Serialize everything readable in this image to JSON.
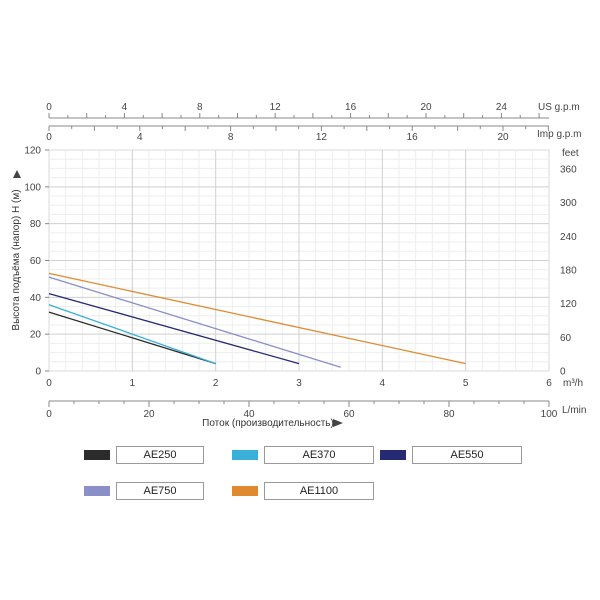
{
  "chart_data": {
    "type": "line",
    "ylabel": "Высота подъёма (напор) H (м)",
    "xlabel": "Поток (производительность)",
    "y_left": {
      "ticks": [
        "0",
        "20",
        "40",
        "60",
        "80",
        "100",
        "120"
      ],
      "ylim": [
        0,
        120
      ]
    },
    "y_right": {
      "unit": "feet",
      "ticks": [
        "0",
        "60",
        "120",
        "180",
        "240",
        "300",
        "360"
      ]
    },
    "x_m3h": {
      "unit": "m³/h",
      "ticks": [
        "0",
        "1",
        "2",
        "3",
        "4",
        "5",
        "6"
      ],
      "xlim": [
        0,
        6
      ]
    },
    "x_lmin": {
      "unit": "L/min",
      "ticks": [
        "0",
        "20",
        "40",
        "60",
        "80",
        "100"
      ]
    },
    "x_usgpm": {
      "unit": "US g.p.m",
      "ticks": [
        "0",
        "4",
        "8",
        "12",
        "16",
        "20",
        "24"
      ]
    },
    "x_impgpm": {
      "unit": "Imp g.p.m",
      "ticks": [
        "0",
        "4",
        "8",
        "12",
        "16",
        "20"
      ]
    },
    "series": [
      {
        "name": "AE250",
        "color": "#2b2b2b",
        "points": [
          [
            0,
            32
          ],
          [
            2,
            4
          ]
        ]
      },
      {
        "name": "AE370",
        "color": "#39b0d8",
        "points": [
          [
            0,
            36
          ],
          [
            2,
            4
          ]
        ]
      },
      {
        "name": "AE550",
        "color": "#252a72",
        "points": [
          [
            0,
            42
          ],
          [
            3,
            4
          ]
        ]
      },
      {
        "name": "AE750",
        "color": "#8a8fc8",
        "points": [
          [
            0,
            51
          ],
          [
            3.5,
            2
          ]
        ]
      },
      {
        "name": "AE1100",
        "color": "#e08a30",
        "points": [
          [
            0,
            53
          ],
          [
            5,
            4
          ]
        ]
      }
    ]
  }
}
